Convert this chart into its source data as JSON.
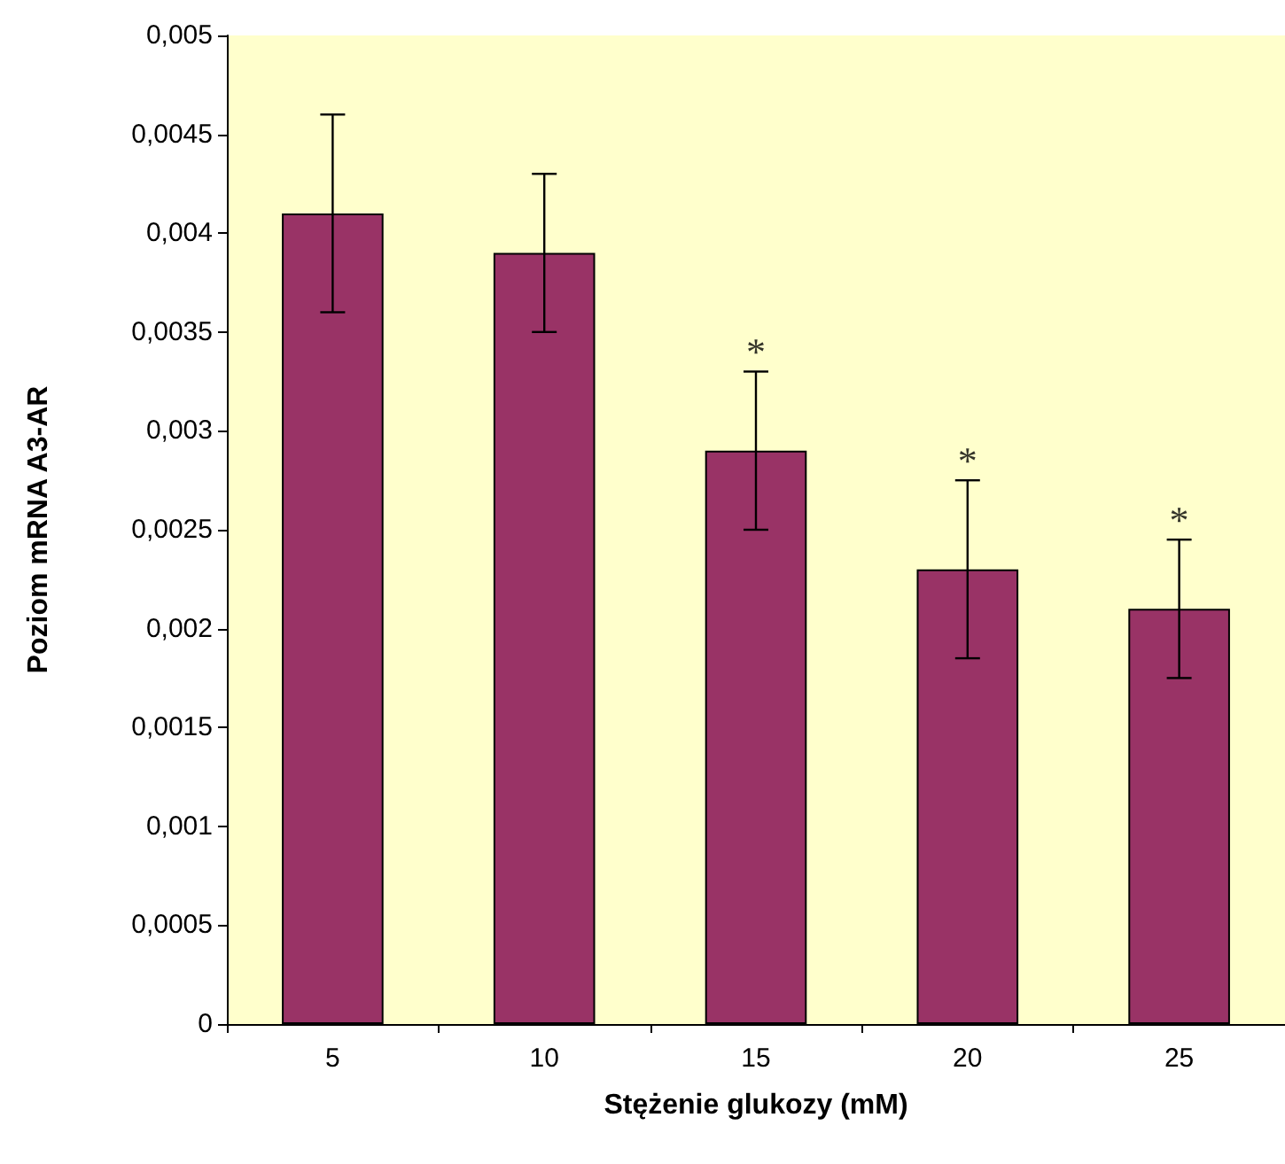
{
  "chart_data": {
    "type": "bar",
    "xlabel": "Stężenie glukozy (mM)",
    "ylabel": "Poziom mRNA A3-AR",
    "categories": [
      "5",
      "10",
      "15",
      "20",
      "25"
    ],
    "series": [
      {
        "color": "#993366",
        "values": [
          0.0041,
          0.0039,
          0.0029,
          0.0023,
          0.0021
        ],
        "errors": [
          0.0005,
          0.0004,
          0.0004,
          0.00045,
          0.00035
        ]
      }
    ],
    "ylim": [
      0,
      0.005
    ],
    "yticks": [
      0,
      {
        "value": 0.0005,
        "label": "0,0005"
      },
      {
        "value": 0.001,
        "label": "0,001"
      },
      {
        "value": 0.0015,
        "label": "0,0015"
      },
      {
        "value": 0.002,
        "label": "0,002"
      },
      {
        "value": 0.0025,
        "label": "0,0025"
      },
      {
        "value": 0.003,
        "label": "0,003"
      },
      {
        "value": 0.0035,
        "label": "0,0035"
      },
      {
        "value": 0.004,
        "label": "0,004"
      },
      {
        "value": 0.0045,
        "label": "0,0045"
      },
      {
        "value": 0.005,
        "label": "0,005"
      }
    ],
    "annotations": [
      {
        "text": "*",
        "x": "15",
        "y": 0.0033
      },
      {
        "text": "*",
        "x": "20",
        "y": 0.00275
      },
      {
        "text": "*",
        "x": "25",
        "y": 0.00245
      }
    ],
    "grid": false
  }
}
